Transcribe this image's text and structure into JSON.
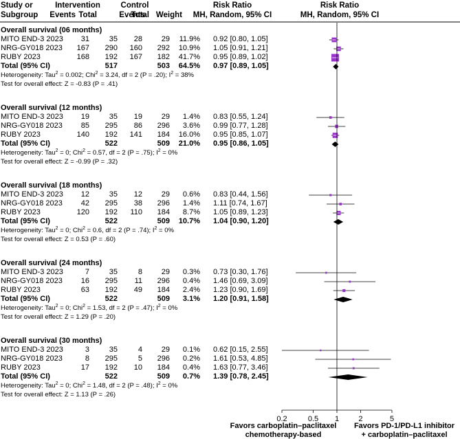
{
  "header": {
    "study_l1": "Study or",
    "study_l2": "Subgroup",
    "intervention": "Intervention",
    "control": "Control",
    "events": "Events",
    "total": "Total",
    "weight": "Weight",
    "rr_label": "Risk Ratio",
    "rr_method": "MH, Random, 95% CI",
    "plot_title": "Risk Ratio",
    "plot_method": "MH, Random, 95% CI"
  },
  "chart_data": {
    "type": "forest",
    "axis": {
      "scale": "log",
      "ticks": [
        0.2,
        0.5,
        1,
        2,
        5
      ],
      "tick_labels": [
        "0.2",
        "0.5",
        "1",
        "2",
        "5"
      ],
      "reference_line": 1
    },
    "favors_left": [
      "Favors carboplatin–paclitaxel",
      "chemotherapy-based"
    ],
    "favors_right": [
      "Favors PD-1/PD-L1 inhibitor",
      "+ carboplatin–paclitaxel"
    ],
    "groups": [
      {
        "title": "Overall survival (06 months)",
        "studies": [
          {
            "name": "MITO END-3 2023",
            "ie": "31",
            "it": "35",
            "ce": "28",
            "ct": "29",
            "weight": "11.9%",
            "ci": "0.92 [0.80, 1.05]",
            "rr": 0.92,
            "lo": 0.8,
            "hi": 1.05
          },
          {
            "name": "NRG-GY018 2023",
            "ie": "167",
            "it": "290",
            "ce": "160",
            "ct": "292",
            "weight": "10.9%",
            "ci": "1.05 [0.91, 1.21]",
            "rr": 1.05,
            "lo": 0.91,
            "hi": 1.21
          },
          {
            "name": "RUBY 2023",
            "ie": "168",
            "it": "192",
            "ce": "167",
            "ct": "182",
            "weight": "41.7%",
            "ci": "0.95 [0.89, 1.02]",
            "rr": 0.95,
            "lo": 0.89,
            "hi": 1.02
          }
        ],
        "total": {
          "label": "Total (95% CI)",
          "it": "517",
          "ct": "503",
          "weight": "64.5%",
          "ci": "0.97 [0.89, 1.05]",
          "rr": 0.97,
          "lo": 0.89,
          "hi": 1.05
        },
        "het_pre": "Heterogeneity: Tau",
        "het_mid1": " = 0.002; Chi",
        "het_mid2": " = 3.24, df = 2 (P = .20); I",
        "het_post": " = 38%",
        "effect": "Test for overall effect: Z = -0.83 (P = .41)"
      },
      {
        "title": "Overall survival (12 months)",
        "studies": [
          {
            "name": "MITO END-3 2023",
            "ie": "19",
            "it": "35",
            "ce": "19",
            "ct": "29",
            "weight": "1.4%",
            "ci": "0.83 [0.55, 1.24]",
            "rr": 0.83,
            "lo": 0.55,
            "hi": 1.24
          },
          {
            "name": "NRG-GY018 2023",
            "ie": "85",
            "it": "295",
            "ce": "86",
            "ct": "296",
            "weight": "3.6%",
            "ci": "0.99 [0.77, 1.28]",
            "rr": 0.99,
            "lo": 0.77,
            "hi": 1.28
          },
          {
            "name": "RUBY 2023",
            "ie": "140",
            "it": "192",
            "ce": "141",
            "ct": "184",
            "weight": "16.0%",
            "ci": "0.95 [0.85, 1.07]",
            "rr": 0.95,
            "lo": 0.85,
            "hi": 1.07
          }
        ],
        "total": {
          "label": "Total (95% CI)",
          "it": "522",
          "ct": "509",
          "weight": "21.0%",
          "ci": "0.95 [0.86, 1.05]",
          "rr": 0.95,
          "lo": 0.86,
          "hi": 1.05
        },
        "het_pre": "Heterogeneity: Tau",
        "het_mid1": " = 0; Chi",
        "het_mid2": " = 0.57, df = 2 (P = .75); I",
        "het_post": " = 0%",
        "effect": "Test for overall effect: Z = -0.99 (P = .32)"
      },
      {
        "title": "Overall survival (18 months)",
        "studies": [
          {
            "name": "MITO END-3 2023",
            "ie": "12",
            "it": "35",
            "ce": "12",
            "ct": "29",
            "weight": "0.6%",
            "ci": "0.83 [0.44, 1.56]",
            "rr": 0.83,
            "lo": 0.44,
            "hi": 1.56
          },
          {
            "name": "NRG-GY018 2023",
            "ie": "42",
            "it": "295",
            "ce": "38",
            "ct": "296",
            "weight": "1.4%",
            "ci": "1.11 [0.74, 1.67]",
            "rr": 1.11,
            "lo": 0.74,
            "hi": 1.67
          },
          {
            "name": "RUBY 2023",
            "ie": "120",
            "it": "192",
            "ce": "110",
            "ct": "184",
            "weight": "8.7%",
            "ci": "1.05 [0.89, 1.23]",
            "rr": 1.05,
            "lo": 0.89,
            "hi": 1.23
          }
        ],
        "total": {
          "label": "Total (95% CI)",
          "it": "522",
          "ct": "509",
          "weight": "10.7%",
          "ci": "1.04 [0.90, 1.20]",
          "rr": 1.04,
          "lo": 0.9,
          "hi": 1.2
        },
        "het_pre": "Heterogeneity: Tau",
        "het_mid1": " = 0; Chi",
        "het_mid2": " = 0.6, df = 2 (P = .74); I",
        "het_post": " = 0%",
        "effect": "Test for overall effect: Z = 0.53 (P = .60)"
      },
      {
        "title": "Overall survival (24 months)",
        "studies": [
          {
            "name": "MITO END-3 2023",
            "ie": "7",
            "it": "35",
            "ce": "8",
            "ct": "29",
            "weight": "0.3%",
            "ci": "0.73 [0.30, 1.76]",
            "rr": 0.73,
            "lo": 0.3,
            "hi": 1.76
          },
          {
            "name": "NRG-GY018 2023",
            "ie": "16",
            "it": "295",
            "ce": "11",
            "ct": "296",
            "weight": "0.4%",
            "ci": "1.46 [0.69, 3.09]",
            "rr": 1.46,
            "lo": 0.69,
            "hi": 3.09
          },
          {
            "name": "RUBY 2023",
            "ie": "63",
            "it": "192",
            "ce": "49",
            "ct": "184",
            "weight": "2.4%",
            "ci": "1.23 [0.90, 1.69]",
            "rr": 1.23,
            "lo": 0.9,
            "hi": 1.69
          }
        ],
        "total": {
          "label": "Total (95% CI)",
          "it": "522",
          "ct": "509",
          "weight": "3.1%",
          "ci": "1.20 [0.91, 1.58]",
          "rr": 1.2,
          "lo": 0.91,
          "hi": 1.58
        },
        "het_pre": "Heterogeneity: Tau",
        "het_mid1": " = 0; Chi",
        "het_mid2": " = 1.53, df = 2 (P = .47); I",
        "het_post": " = 0%",
        "effect": "Test for overall effect: Z = 1.29 (P = .20)"
      },
      {
        "title": "Overall survival (30 months)",
        "studies": [
          {
            "name": "MITO END-3 2023",
            "ie": "3",
            "it": "35",
            "ce": "4",
            "ct": "29",
            "weight": "0.1%",
            "ci": "0.62 [0.15, 2.55]",
            "rr": 0.62,
            "lo": 0.15,
            "hi": 2.55
          },
          {
            "name": "NRG-GY018 2023",
            "ie": "8",
            "it": "295",
            "ce": "5",
            "ct": "296",
            "weight": "0.2%",
            "ci": "1.61 [0.53, 4.85]",
            "rr": 1.61,
            "lo": 0.53,
            "hi": 4.85
          },
          {
            "name": "RUBY 2023",
            "ie": "17",
            "it": "192",
            "ce": "10",
            "ct": "184",
            "weight": "0.4%",
            "ci": "1.63 [0.77, 3.46]",
            "rr": 1.63,
            "lo": 0.77,
            "hi": 3.46
          }
        ],
        "total": {
          "label": "Total (95% CI)",
          "it": "522",
          "ct": "509",
          "weight": "0.7%",
          "ci": "1.39 [0.78, 2.45]",
          "rr": 1.39,
          "lo": 0.78,
          "hi": 2.45
        },
        "het_pre": "Heterogeneity: Tau",
        "het_mid1": " = 0; Chi",
        "het_mid2": " = 1.48, df = 2 (P = .48); I",
        "het_post": " = 0%",
        "effect": "Test for overall effect: Z = 1.13 (P = .26)"
      }
    ],
    "colors": {
      "marker": "#9933cc",
      "marker_dark": "#7a1fb0",
      "diamond": "#000000",
      "line": "#000000"
    }
  }
}
